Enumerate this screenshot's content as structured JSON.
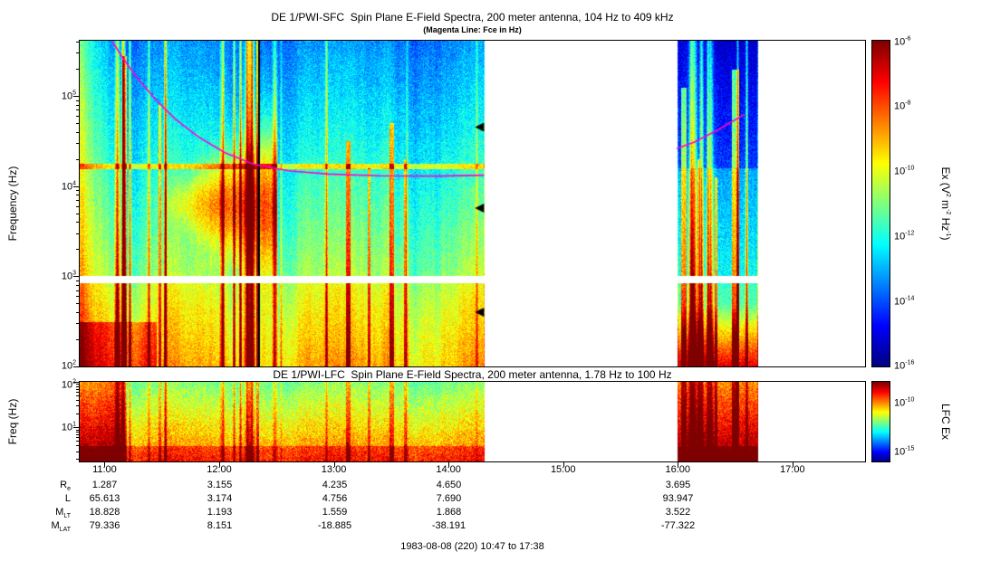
{
  "figure": {
    "footer": "1983-08-08 (220) 10:47 to 17:38"
  },
  "chart_data": [
    {
      "type": "heatmap",
      "instrument": "DE 1/PWI-SFC",
      "title": "DE 1/PWI-SFC  Spin Plane E-Field Spectra, 200 meter antenna, 104 Hz to 409 kHz",
      "subtitle": "(Magenta Line: Fce in Hz)",
      "ylabel": "Frequency (Hz)",
      "y_scale": "log",
      "y_range_hz": [
        100,
        409000
      ],
      "y_ticks": [
        {
          "base": "10",
          "exp": "5"
        },
        {
          "base": "10",
          "exp": "4"
        },
        {
          "base": "10",
          "exp": "3"
        },
        {
          "base": "10",
          "exp": "2"
        }
      ],
      "x_range_hours": [
        10.7833,
        17.6333
      ],
      "x_ticks": [
        {
          "label": "11:00",
          "hour": 11
        },
        {
          "label": "12:00",
          "hour": 12
        },
        {
          "label": "13:00",
          "hour": 13
        },
        {
          "label": "14:00",
          "hour": 14
        },
        {
          "label": "15:00",
          "hour": 15
        },
        {
          "label": "16:00",
          "hour": 16
        },
        {
          "label": "17:00",
          "hour": 17
        }
      ],
      "data_segments_hours": [
        [
          10.7833,
          14.31
        ],
        [
          15.99,
          16.7
        ]
      ],
      "gap_band_hz": [
        850,
        1020
      ],
      "fce_line": {
        "color": "#ff00d0",
        "segments": [
          [
            [
              11.07,
              400000
            ],
            [
              11.17,
              250000
            ],
            [
              11.3,
              150000
            ],
            [
              11.45,
              90000
            ],
            [
              11.62,
              55000
            ],
            [
              11.82,
              35000
            ],
            [
              12.05,
              23500
            ],
            [
              12.3,
              17500
            ],
            [
              12.6,
              14800
            ],
            [
              12.95,
              13600
            ],
            [
              13.4,
              13000
            ],
            [
              13.9,
              12900
            ],
            [
              14.31,
              13200
            ]
          ],
          [
            [
              15.99,
              26000
            ],
            [
              16.15,
              31000
            ],
            [
              16.35,
              42000
            ],
            [
              16.45,
              50000
            ],
            [
              16.58,
              62000
            ]
          ]
        ]
      },
      "edge_markers": [
        {
          "hour": 14.31,
          "hz": 45000
        },
        {
          "hour": 14.31,
          "hz": 5700
        },
        {
          "hour": 14.31,
          "hz": 400
        }
      ],
      "colorbar": {
        "ticks": [
          {
            "base": "10",
            "exp": "-6"
          },
          {
            "base": "10",
            "exp": "-8"
          },
          {
            "base": "10",
            "exp": "-10"
          },
          {
            "base": "10",
            "exp": "-12"
          },
          {
            "base": "10",
            "exp": "-14"
          },
          {
            "base": "10",
            "exp": "-16"
          }
        ],
        "label_parts": [
          {
            "t": "Ex (V"
          },
          {
            "sup": "2"
          },
          {
            "t": " m"
          },
          {
            "sup": "-2"
          },
          {
            "t": " Hz"
          },
          {
            "sup": "-1"
          },
          {
            "t": ")"
          }
        ]
      },
      "render_features": {
        "streak_seed": 1234,
        "spike_count": 55,
        "bursts": [
          {
            "h": 11.17,
            "w": 0.02,
            "top": 5.45,
            "a": 0.3
          },
          {
            "h": 11.48,
            "w": 0.012,
            "top": 4.9,
            "a": 0.25
          },
          {
            "h": 12.26,
            "w": 0.03,
            "top": 5.62,
            "a": 0.4
          },
          {
            "h": 12.33,
            "w": 0.012,
            "top": 5.62,
            "a": 0.35
          },
          {
            "h": 13.12,
            "w": 0.018,
            "top": 4.5,
            "a": 0.3
          },
          {
            "h": 13.3,
            "w": 0.012,
            "top": 4.2,
            "a": 0.26
          },
          {
            "h": 13.5,
            "w": 0.02,
            "top": 4.7,
            "a": 0.3
          },
          {
            "h": 13.62,
            "w": 0.012,
            "top": 4.3,
            "a": 0.28
          },
          {
            "h": 16.05,
            "w": 0.025,
            "top": 5.1,
            "a": 0.32
          },
          {
            "h": 16.18,
            "w": 0.012,
            "top": 4.3,
            "a": 0.3
          },
          {
            "h": 16.33,
            "w": 0.015,
            "top": 4.1,
            "a": 0.3
          },
          {
            "h": 16.5,
            "w": 0.03,
            "top": 5.3,
            "a": 0.34
          }
        ],
        "dark_columns": [
          {
            "h": 12.345,
            "w": 0.008
          }
        ]
      }
    },
    {
      "type": "heatmap",
      "instrument": "DE 1/PWI-LFC",
      "title": "DE 1/PWI-LFC  Spin Plane E-Field Spectra, 200 meter antenna, 1.78 Hz to 100 Hz",
      "ylabel": "Freq (Hz)",
      "y_scale": "log",
      "y_range_hz": [
        1.78,
        100
      ],
      "y_ticks": [
        {
          "base": "10",
          "exp": "2"
        },
        {
          "base": "10",
          "exp": "1"
        }
      ],
      "colorbar": {
        "label": "LFC Ex",
        "ticks": [
          {
            "base": "10",
            "exp": "-10"
          },
          {
            "base": "10",
            "exp": "-15"
          }
        ]
      }
    }
  ],
  "ephemeris": {
    "rows": [
      {
        "label": {
          "base": "R",
          "sub": "e"
        },
        "values": [
          "1.287",
          "3.155",
          "4.235",
          "4.650",
          "3.695"
        ]
      },
      {
        "label": {
          "base": "L",
          "sub": ""
        },
        "values": [
          "65.613",
          "3.174",
          "4.756",
          "7.690",
          "93.947"
        ]
      },
      {
        "label": {
          "base": "M",
          "sub": "LT"
        },
        "values": [
          "18.828",
          "1.193",
          "1.559",
          "1.868",
          "3.522"
        ]
      },
      {
        "label": {
          "base": "M",
          "sub": "LAT"
        },
        "values": [
          "79.336",
          "8.151",
          "-18.885",
          "-38.191",
          "-77.322"
        ]
      }
    ]
  }
}
